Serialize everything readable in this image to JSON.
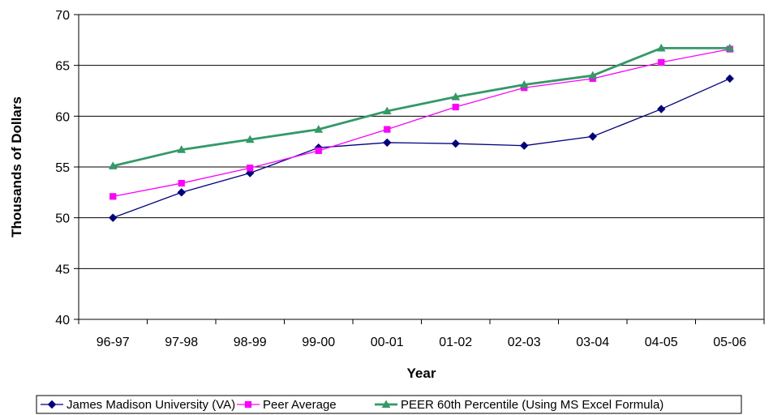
{
  "chart_data": {
    "type": "line",
    "categories": [
      "96-97",
      "97-98",
      "98-99",
      "99-00",
      "00-01",
      "01-02",
      "02-03",
      "03-04",
      "04-05",
      "05-06"
    ],
    "xlabel": "Year",
    "ylabel": "Thousands of Dollars",
    "ylim": [
      40,
      70
    ],
    "yticks": [
      40,
      45,
      50,
      55,
      60,
      65,
      70
    ],
    "grid": "horizontal",
    "legend_position": "bottom",
    "series": [
      {
        "name": "James Madison University (VA)",
        "color": "#000080",
        "marker": "diamond",
        "values": [
          50.0,
          52.5,
          54.4,
          56.9,
          57.4,
          57.3,
          57.1,
          58.0,
          60.7,
          63.7
        ]
      },
      {
        "name": "Peer Average",
        "color": "#FF00FF",
        "marker": "square",
        "values": [
          52.1,
          53.4,
          54.9,
          56.6,
          58.7,
          60.9,
          62.8,
          63.7,
          65.3,
          66.6
        ]
      },
      {
        "name": "PEER 60th Percentile (Using MS Excel Formula)",
        "color": "#339966",
        "marker": "triangle",
        "values": [
          55.1,
          56.7,
          57.7,
          58.7,
          60.5,
          61.9,
          63.1,
          64.0,
          66.7,
          66.7
        ]
      }
    ]
  }
}
